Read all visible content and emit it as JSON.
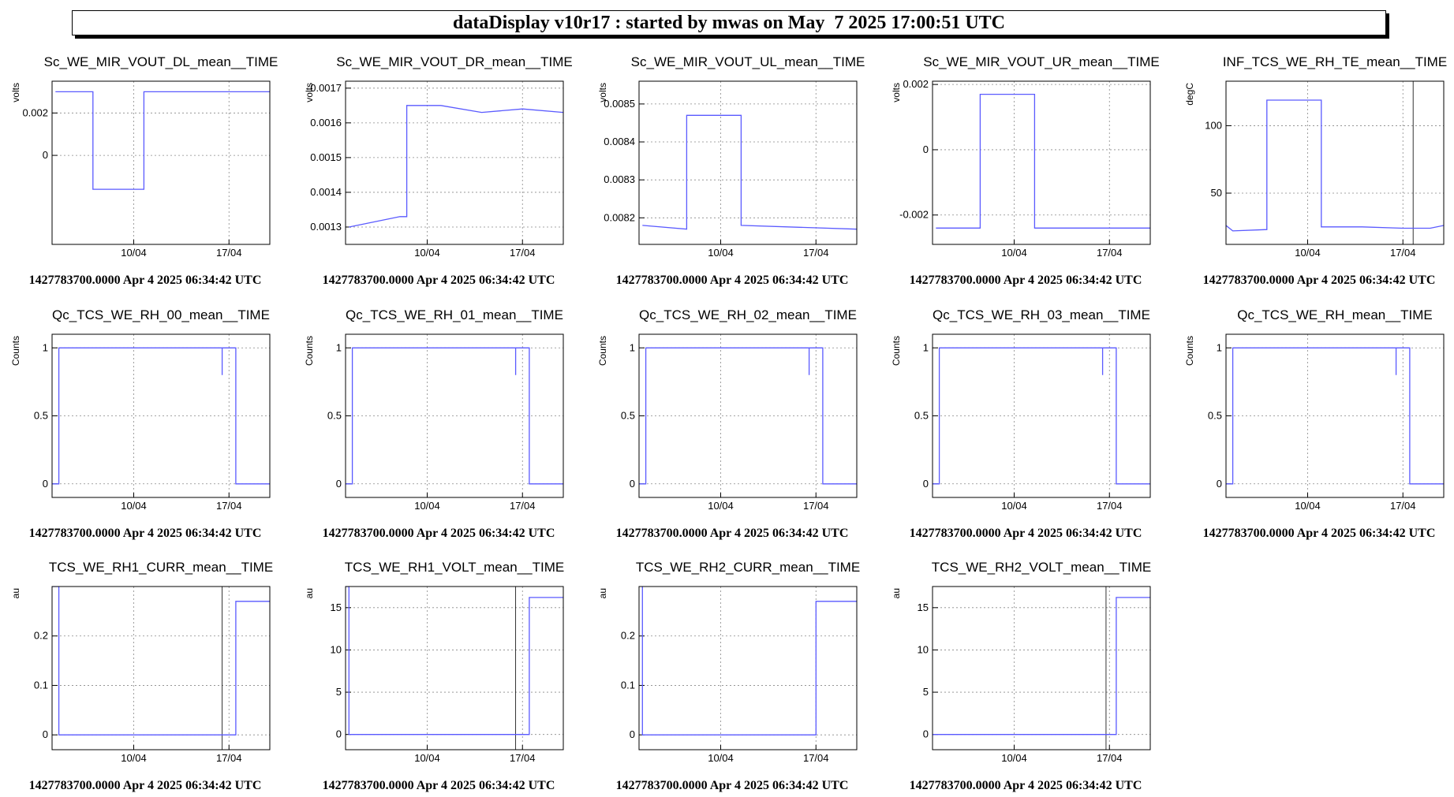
{
  "header": {
    "title": "dataDisplay v10r17 : started by mwas on May  7 2025 17:00:51 UTC"
  },
  "x_range": [
    "2025-04-04",
    "2025-04-20"
  ],
  "x_ticks": [
    {
      "date": "2025-04-10",
      "label": "10/04"
    },
    {
      "date": "2025-04-17",
      "label": "17/04"
    }
  ],
  "colors": {
    "series": "#5a5aff",
    "grid": "#888888",
    "frame": "#000000"
  },
  "chart_data": [
    {
      "type": "line",
      "title": "Sc_WE_MIR_VOUT_DL_mean__TIME",
      "ylabel": "volts",
      "ylim": [
        -0.0042,
        0.0035
      ],
      "yticks": [
        {
          "v": 0.002,
          "label": "0.002"
        },
        {
          "v": 0,
          "label": "0"
        }
      ],
      "points": [
        [
          "2025-04-04T06",
          0.003
        ],
        [
          "2025-04-07T00",
          0.003
        ],
        [
          "2025-04-07T00",
          -0.0016
        ],
        [
          "2025-04-10T18",
          -0.0016
        ],
        [
          "2025-04-10T18",
          0.003
        ],
        [
          "2025-04-20",
          0.003
        ]
      ],
      "footer": "1427783700.0000 Apr 4 2025 06:34:42 UTC"
    },
    {
      "type": "line",
      "title": "Sc_WE_MIR_VOUT_DR_mean__TIME",
      "ylabel": "volts",
      "ylim": [
        0.00125,
        0.00172
      ],
      "yticks": [
        {
          "v": 0.0017,
          "label": "0.0017"
        },
        {
          "v": 0.0016,
          "label": "0.0016"
        },
        {
          "v": 0.0015,
          "label": "0.0015"
        },
        {
          "v": 0.0014,
          "label": "0.0014"
        },
        {
          "v": 0.0013,
          "label": "0.0013"
        }
      ],
      "points": [
        [
          "2025-04-04T06",
          0.0013
        ],
        [
          "2025-04-08T00",
          0.00133
        ],
        [
          "2025-04-08T12",
          0.00133
        ],
        [
          "2025-04-08T12",
          0.00165
        ],
        [
          "2025-04-11",
          0.00165
        ],
        [
          "2025-04-14",
          0.00163
        ],
        [
          "2025-04-17",
          0.00164
        ],
        [
          "2025-04-20",
          0.00163
        ]
      ],
      "footer": "1427783700.0000 Apr 4 2025 06:34:42 UTC"
    },
    {
      "type": "line",
      "title": "Sc_WE_MIR_VOUT_UL_mean__TIME",
      "ylabel": "volts",
      "ylim": [
        0.00813,
        0.00856
      ],
      "yticks": [
        {
          "v": 0.0085,
          "label": "0.0085"
        },
        {
          "v": 0.0084,
          "label": "0.0084"
        },
        {
          "v": 0.0083,
          "label": "0.0083"
        },
        {
          "v": 0.0082,
          "label": "0.0082"
        }
      ],
      "points": [
        [
          "2025-04-04T06",
          0.00818
        ],
        [
          "2025-04-07T12",
          0.00817
        ],
        [
          "2025-04-07T12",
          0.00847
        ],
        [
          "2025-04-11T12",
          0.00847
        ],
        [
          "2025-04-11T12",
          0.00818
        ],
        [
          "2025-04-20",
          0.00817
        ]
      ],
      "footer": "1427783700.0000 Apr 4 2025 06:34:42 UTC"
    },
    {
      "type": "line",
      "title": "Sc_WE_MIR_VOUT_UR_mean__TIME",
      "ylabel": "volts",
      "ylim": [
        -0.0029,
        0.0021
      ],
      "yticks": [
        {
          "v": 0.002,
          "label": "0.002"
        },
        {
          "v": 0,
          "label": "0"
        },
        {
          "v": -0.002,
          "label": "-0.002"
        }
      ],
      "points": [
        [
          "2025-04-04T06",
          -0.0024
        ],
        [
          "2025-04-07T12",
          -0.0024
        ],
        [
          "2025-04-07T12",
          0.0017
        ],
        [
          "2025-04-11T12",
          0.0017
        ],
        [
          "2025-04-11T12",
          -0.0024
        ],
        [
          "2025-04-20",
          -0.0024
        ]
      ],
      "footer": "1427783700.0000 Apr 4 2025 06:34:42 UTC"
    },
    {
      "type": "line",
      "title": "INF_TCS_WE_RH_TE_mean__TIME",
      "ylabel": "degC",
      "ylim": [
        12,
        133
      ],
      "yticks": [
        {
          "v": 100,
          "label": "100"
        },
        {
          "v": 50,
          "label": "50"
        }
      ],
      "markers": [
        "2025-04-17T18"
      ],
      "points": [
        [
          "2025-04-04",
          26
        ],
        [
          "2025-04-04T12",
          22
        ],
        [
          "2025-04-07",
          23
        ],
        [
          "2025-04-07",
          119
        ],
        [
          "2025-04-11",
          119
        ],
        [
          "2025-04-11",
          25
        ],
        [
          "2025-04-14",
          25
        ],
        [
          "2025-04-17",
          24
        ],
        [
          "2025-04-19",
          24
        ],
        [
          "2025-04-20",
          26
        ]
      ],
      "footer": "1427783700.0000 Apr 4 2025 06:34:42 UTC"
    },
    {
      "type": "line",
      "title": "Qc_TCS_WE_RH_00_mean__TIME",
      "ylabel": "Counts",
      "ylim": [
        -0.1,
        1.1
      ],
      "yticks": [
        {
          "v": 1,
          "label": "1"
        },
        {
          "v": 0.5,
          "label": "0.5"
        },
        {
          "v": 0,
          "label": "0"
        }
      ],
      "points": [
        [
          "2025-04-04",
          0
        ],
        [
          "2025-04-04T12",
          0
        ],
        [
          "2025-04-04T12",
          1
        ],
        [
          "2025-04-16T12",
          1
        ],
        [
          "2025-04-16T12",
          0.8
        ],
        [
          "2025-04-16T12",
          1
        ],
        [
          "2025-04-17T12",
          1
        ],
        [
          "2025-04-17T12",
          0
        ],
        [
          "2025-04-20",
          0
        ]
      ],
      "footer": "1427783700.0000 Apr 4 2025 06:34:42 UTC"
    },
    {
      "type": "line",
      "title": "Qc_TCS_WE_RH_01_mean__TIME",
      "ylabel": "Counts",
      "ylim": [
        -0.1,
        1.1
      ],
      "yticks": [
        {
          "v": 1,
          "label": "1"
        },
        {
          "v": 0.5,
          "label": "0.5"
        },
        {
          "v": 0,
          "label": "0"
        }
      ],
      "points": [
        [
          "2025-04-04",
          0
        ],
        [
          "2025-04-04T12",
          0
        ],
        [
          "2025-04-04T12",
          1
        ],
        [
          "2025-04-16T12",
          1
        ],
        [
          "2025-04-16T12",
          0.8
        ],
        [
          "2025-04-16T12",
          1
        ],
        [
          "2025-04-17T12",
          1
        ],
        [
          "2025-04-17T12",
          0
        ],
        [
          "2025-04-20",
          0
        ]
      ],
      "footer": "1427783700.0000 Apr 4 2025 06:34:42 UTC"
    },
    {
      "type": "line",
      "title": "Qc_TCS_WE_RH_02_mean__TIME",
      "ylabel": "Counts",
      "ylim": [
        -0.1,
        1.1
      ],
      "yticks": [
        {
          "v": 1,
          "label": "1"
        },
        {
          "v": 0.5,
          "label": "0.5"
        },
        {
          "v": 0,
          "label": "0"
        }
      ],
      "points": [
        [
          "2025-04-04",
          0
        ],
        [
          "2025-04-04T12",
          0
        ],
        [
          "2025-04-04T12",
          1
        ],
        [
          "2025-04-16T12",
          1
        ],
        [
          "2025-04-16T12",
          0.8
        ],
        [
          "2025-04-16T12",
          1
        ],
        [
          "2025-04-17T12",
          1
        ],
        [
          "2025-04-17T12",
          0
        ],
        [
          "2025-04-20",
          0
        ]
      ],
      "footer": "1427783700.0000 Apr 4 2025 06:34:42 UTC"
    },
    {
      "type": "line",
      "title": "Qc_TCS_WE_RH_03_mean__TIME",
      "ylabel": "Counts",
      "ylim": [
        -0.1,
        1.1
      ],
      "yticks": [
        {
          "v": 1,
          "label": "1"
        },
        {
          "v": 0.5,
          "label": "0.5"
        },
        {
          "v": 0,
          "label": "0"
        }
      ],
      "points": [
        [
          "2025-04-04",
          0
        ],
        [
          "2025-04-04T12",
          0
        ],
        [
          "2025-04-04T12",
          1
        ],
        [
          "2025-04-16T12",
          1
        ],
        [
          "2025-04-16T12",
          0.8
        ],
        [
          "2025-04-16T12",
          1
        ],
        [
          "2025-04-17T12",
          1
        ],
        [
          "2025-04-17T12",
          0
        ],
        [
          "2025-04-20",
          0
        ]
      ],
      "footer": "1427783700.0000 Apr 4 2025 06:34:42 UTC"
    },
    {
      "type": "line",
      "title": "Qc_TCS_WE_RH_mean__TIME",
      "ylabel": "Counts",
      "ylim": [
        -0.1,
        1.1
      ],
      "yticks": [
        {
          "v": 1,
          "label": "1"
        },
        {
          "v": 0.5,
          "label": "0.5"
        },
        {
          "v": 0,
          "label": "0"
        }
      ],
      "points": [
        [
          "2025-04-04",
          0
        ],
        [
          "2025-04-04T12",
          0
        ],
        [
          "2025-04-04T12",
          1
        ],
        [
          "2025-04-16T12",
          1
        ],
        [
          "2025-04-16T12",
          0.8
        ],
        [
          "2025-04-16T12",
          1
        ],
        [
          "2025-04-17T12",
          1
        ],
        [
          "2025-04-17T12",
          0
        ],
        [
          "2025-04-20",
          0
        ]
      ],
      "footer": "1427783700.0000 Apr 4 2025 06:34:42 UTC"
    },
    {
      "type": "line",
      "title": "TCS_WE_RH1_CURR_mean__TIME",
      "ylabel": "au",
      "ylim": [
        -0.03,
        0.3
      ],
      "yticks": [
        {
          "v": 0.2,
          "label": "0.2"
        },
        {
          "v": 0.1,
          "label": "0.1"
        },
        {
          "v": 0,
          "label": "0"
        }
      ],
      "markers": [
        "2025-04-16T12"
      ],
      "points": [
        [
          "2025-04-04",
          0.3
        ],
        [
          "2025-04-04T12",
          0.3
        ],
        [
          "2025-04-04T12",
          0
        ],
        [
          "2025-04-17T12",
          0
        ],
        [
          "2025-04-17T12",
          0.27
        ],
        [
          "2025-04-20",
          0.27
        ]
      ],
      "footer": "1427783700.0000 Apr 4 2025 06:34:42 UTC"
    },
    {
      "type": "line",
      "title": "TCS_WE_RH1_VOLT_mean__TIME",
      "ylabel": "au",
      "ylim": [
        -1.8,
        17.5
      ],
      "yticks": [
        {
          "v": 15,
          "label": "15"
        },
        {
          "v": 10,
          "label": "10"
        },
        {
          "v": 5,
          "label": "5"
        },
        {
          "v": 0,
          "label": "0"
        }
      ],
      "markers": [
        "2025-04-16T12"
      ],
      "points": [
        [
          "2025-04-04",
          17.5
        ],
        [
          "2025-04-04T06",
          17.5
        ],
        [
          "2025-04-04T06",
          0
        ],
        [
          "2025-04-17T12",
          0
        ],
        [
          "2025-04-17T12",
          16.2
        ],
        [
          "2025-04-20",
          16.2
        ]
      ],
      "footer": "1427783700.0000 Apr 4 2025 06:34:42 UTC"
    },
    {
      "type": "line",
      "title": "TCS_WE_RH2_CURR_mean__TIME",
      "ylabel": "au",
      "ylim": [
        -0.03,
        0.3
      ],
      "yticks": [
        {
          "v": 0.2,
          "label": "0.2"
        },
        {
          "v": 0.1,
          "label": "0.1"
        },
        {
          "v": 0,
          "label": "0"
        }
      ],
      "points": [
        [
          "2025-04-04T06",
          0.3
        ],
        [
          "2025-04-04T06",
          0
        ],
        [
          "2025-04-17T00",
          0
        ],
        [
          "2025-04-17T00",
          0.27
        ],
        [
          "2025-04-20",
          0.27
        ]
      ],
      "footer": "1427783700.0000 Apr 4 2025 06:34:42 UTC"
    },
    {
      "type": "line",
      "title": "TCS_WE_RH2_VOLT_mean__TIME",
      "ylabel": "au",
      "ylim": [
        -1.8,
        17.5
      ],
      "yticks": [
        {
          "v": 15,
          "label": "15"
        },
        {
          "v": 10,
          "label": "10"
        },
        {
          "v": 5,
          "label": "5"
        },
        {
          "v": 0,
          "label": "0"
        }
      ],
      "markers": [
        "2025-04-16T18"
      ],
      "points": [
        [
          "2025-04-04",
          0
        ],
        [
          "2025-04-17T12",
          0
        ],
        [
          "2025-04-17T12",
          16.2
        ],
        [
          "2025-04-20",
          16.2
        ]
      ],
      "footer": "1427783700.0000 Apr 4 2025 06:34:42 UTC"
    }
  ]
}
